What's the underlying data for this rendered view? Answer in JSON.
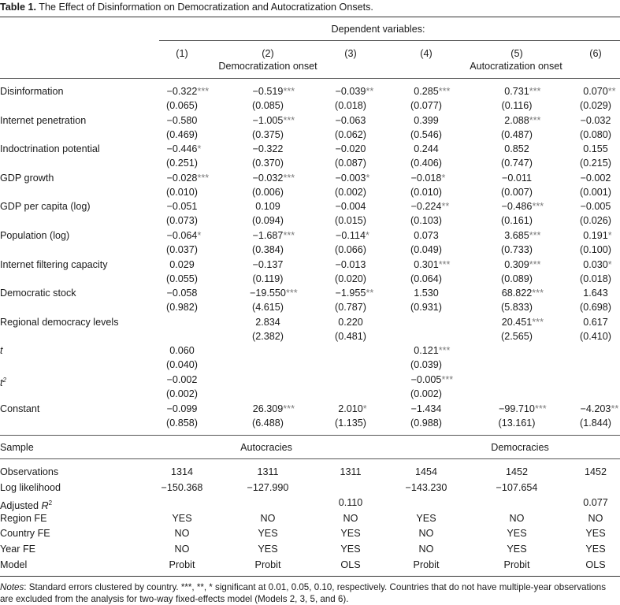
{
  "title": {
    "label": "Table 1.",
    "text": "The Effect of Disinformation on Democratization and Autocratization Onsets."
  },
  "header": {
    "dependent": "Dependent variables:",
    "models": [
      "(1)",
      "(2)",
      "(3)",
      "(4)",
      "(5)",
      "(6)"
    ],
    "group_left": "Democratization onset",
    "group_right": "Autocratization onset"
  },
  "rows": [
    {
      "label": "Disinformation",
      "coef": [
        [
          "−0.322",
          "***"
        ],
        [
          "−0.519",
          "***"
        ],
        [
          "−0.039",
          "**"
        ],
        [
          "0.285",
          "***"
        ],
        [
          "0.731",
          "***"
        ],
        [
          "0.070",
          "**"
        ]
      ],
      "se": [
        "(0.065)",
        "(0.085)",
        "(0.018)",
        "(0.077)",
        "(0.116)",
        "(0.029)"
      ]
    },
    {
      "label": "Internet penetration",
      "coef": [
        [
          "−0.580",
          ""
        ],
        [
          "−1.005 ",
          "***"
        ],
        [
          "−0.063",
          ""
        ],
        [
          "0.399",
          ""
        ],
        [
          "2.088",
          "***"
        ],
        [
          "−0.032",
          ""
        ]
      ],
      "se": [
        "(0.469)",
        "(0.375)",
        "(0.062)",
        "(0.546)",
        "(0.487)",
        "(0.080)"
      ]
    },
    {
      "label": "Indoctrination potential",
      "coef": [
        [
          "−0.446",
          "*"
        ],
        [
          "−0.322",
          ""
        ],
        [
          "−0.020",
          ""
        ],
        [
          "0.244",
          ""
        ],
        [
          "0.852",
          ""
        ],
        [
          "0.155",
          ""
        ]
      ],
      "se": [
        "(0.251)",
        "(0.370)",
        "(0.087)",
        "(0.406)",
        "(0.747)",
        "(0.215)"
      ]
    },
    {
      "label": "GDP growth",
      "coef": [
        [
          "−0.028",
          "***"
        ],
        [
          "−0.032",
          "***"
        ],
        [
          "−0.003",
          "*"
        ],
        [
          "−0.018",
          "*"
        ],
        [
          "−0.011",
          ""
        ],
        [
          "−0.002",
          ""
        ]
      ],
      "se": [
        "(0.010)",
        "(0.006)",
        "(0.002)",
        "(0.010)",
        "(0.007)",
        "(0.001)"
      ]
    },
    {
      "label": "GDP per capita (log)",
      "coef": [
        [
          "−0.051",
          ""
        ],
        [
          "0.109",
          ""
        ],
        [
          "−0.004",
          ""
        ],
        [
          "−0.224",
          "**"
        ],
        [
          "−0.486",
          "***"
        ],
        [
          "−0.005",
          ""
        ]
      ],
      "se": [
        "(0.073)",
        "(0.094)",
        "(0.015)",
        "(0.103)",
        "(0.161)",
        "(0.026)"
      ]
    },
    {
      "label": "Population (log)",
      "coef": [
        [
          "−0.064",
          "*"
        ],
        [
          "−1.687",
          "***"
        ],
        [
          "−0.114",
          "*"
        ],
        [
          "0.073",
          ""
        ],
        [
          "3.685",
          "***"
        ],
        [
          "0.191",
          "*"
        ]
      ],
      "se": [
        "(0.037)",
        "(0.384)",
        "(0.066)",
        "(0.049)",
        "(0.733)",
        "(0.100)"
      ]
    },
    {
      "label": "Internet filtering capacity",
      "coef": [
        [
          "0.029",
          ""
        ],
        [
          "−0.137",
          ""
        ],
        [
          "−0.013",
          ""
        ],
        [
          "0.301",
          "***"
        ],
        [
          "0.309",
          "***"
        ],
        [
          "0.030",
          "*"
        ]
      ],
      "se": [
        "(0.055)",
        "(0.119)",
        "(0.020)",
        "(0.064)",
        "(0.089)",
        "(0.018)"
      ]
    },
    {
      "label": "Democratic stock",
      "coef": [
        [
          "−0.058",
          ""
        ],
        [
          "−19.550",
          "***"
        ],
        [
          "−1.955",
          "**"
        ],
        [
          "1.530",
          ""
        ],
        [
          "68.822",
          "***"
        ],
        [
          "1.643",
          ""
        ]
      ],
      "se": [
        "(0.982)",
        "(4.615)",
        "(0.787)",
        "(0.931)",
        "(5.833)",
        "(0.698)"
      ]
    },
    {
      "label": "Regional democracy levels",
      "coef": [
        [
          "",
          ""
        ],
        [
          "2.834",
          ""
        ],
        [
          "0.220",
          ""
        ],
        [
          "",
          ""
        ],
        [
          "20.451",
          "***"
        ],
        [
          "0.617",
          ""
        ]
      ],
      "se": [
        "",
        "(2.382)",
        "(0.481)",
        "",
        "(2.565)",
        "(0.410)"
      ]
    },
    {
      "label": "t",
      "italic": true,
      "coef": [
        [
          "0.060",
          ""
        ],
        [
          "",
          ""
        ],
        [
          "",
          ""
        ],
        [
          "0.121",
          "***"
        ],
        [
          "",
          ""
        ],
        [
          "",
          ""
        ]
      ],
      "se": [
        "(0.040)",
        "",
        "",
        "(0.039)",
        "",
        ""
      ]
    },
    {
      "label": "t",
      "sup": "2",
      "italic": true,
      "coef": [
        [
          "−0.002",
          ""
        ],
        [
          "",
          ""
        ],
        [
          "",
          ""
        ],
        [
          "−0.005",
          "***"
        ],
        [
          "",
          ""
        ],
        [
          "",
          ""
        ]
      ],
      "se": [
        "(0.002)",
        "",
        "",
        "(0.002)",
        "",
        ""
      ]
    },
    {
      "label": "Constant",
      "coef": [
        [
          "−0.099",
          ""
        ],
        [
          "26.309",
          "***"
        ],
        [
          "2.010",
          "*"
        ],
        [
          "−1.434",
          ""
        ],
        [
          "−99.710",
          "***"
        ],
        [
          "−4.203",
          "**"
        ]
      ],
      "se": [
        "(0.858)",
        "(6.488)",
        "(1.135)",
        "(0.988)",
        "(13.161)",
        "(1.844)"
      ]
    }
  ],
  "sample": {
    "label": "Sample",
    "left": "Autocracies",
    "right": "Democracies"
  },
  "stats": [
    {
      "label": "Observations",
      "vals": [
        "1314",
        "1311",
        "1311",
        "1454",
        "1452",
        "1452"
      ]
    },
    {
      "label": "Log likelihood",
      "vals": [
        "−150.368",
        "−127.990",
        "",
        "−143.230",
        "−107.654",
        ""
      ]
    },
    {
      "label": "Adjusted R",
      "sup": "2",
      "vals": [
        "",
        "",
        "0.110",
        "",
        "",
        "0.077"
      ]
    },
    {
      "label": "Region FE",
      "vals": [
        "YES",
        "NO",
        "NO",
        "YES",
        "NO",
        "NO"
      ]
    },
    {
      "label": "Country FE",
      "vals": [
        "NO",
        "YES",
        "YES",
        "NO",
        "YES",
        "YES"
      ]
    },
    {
      "label": "Year FE",
      "vals": [
        "NO",
        "YES",
        "YES",
        "NO",
        "YES",
        "YES"
      ]
    },
    {
      "label": "Model",
      "vals": [
        "Probit",
        "Probit",
        "OLS",
        "Probit",
        "Probit",
        "OLS"
      ]
    }
  ],
  "notes": {
    "prefix": "Notes",
    "line1": ": Standard errors clustered by country. ***, **, * significant at 0.01, 0.05, 0.10, respectively. Countries that do not have multiple-year observations",
    "line2": "are excluded from the analysis for two-way fixed-effects model (Models 2, 3, 5, and 6)."
  }
}
